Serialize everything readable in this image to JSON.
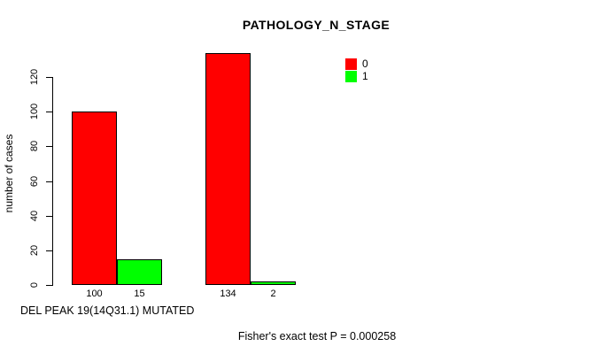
{
  "chart_data": {
    "type": "bar",
    "title": "PATHOLOGY_N_STAGE",
    "ylabel": "number of cases",
    "xlabel": "DEL PEAK 19(14Q31.1) MUTATED",
    "annotation": "Fisher's exact test P = 0.000258",
    "y_ticks": [
      0,
      20,
      40,
      60,
      80,
      100,
      120
    ],
    "ylim": [
      0,
      135
    ],
    "grid": false,
    "legend_position": "top-right",
    "legend": [
      {
        "label": "0",
        "color": "#ff0000"
      },
      {
        "label": "1",
        "color": "#00ff00"
      }
    ],
    "series": [
      {
        "name": "0",
        "color": "#ff0000",
        "values": [
          100,
          134
        ]
      },
      {
        "name": "1",
        "color": "#00ff00",
        "values": [
          15,
          2
        ]
      }
    ],
    "bar_value_labels": [
      "100",
      "15",
      "134",
      "2"
    ],
    "bar_border_color": "#000000",
    "axis_color": "#000000",
    "background_color": "#ffffff"
  }
}
